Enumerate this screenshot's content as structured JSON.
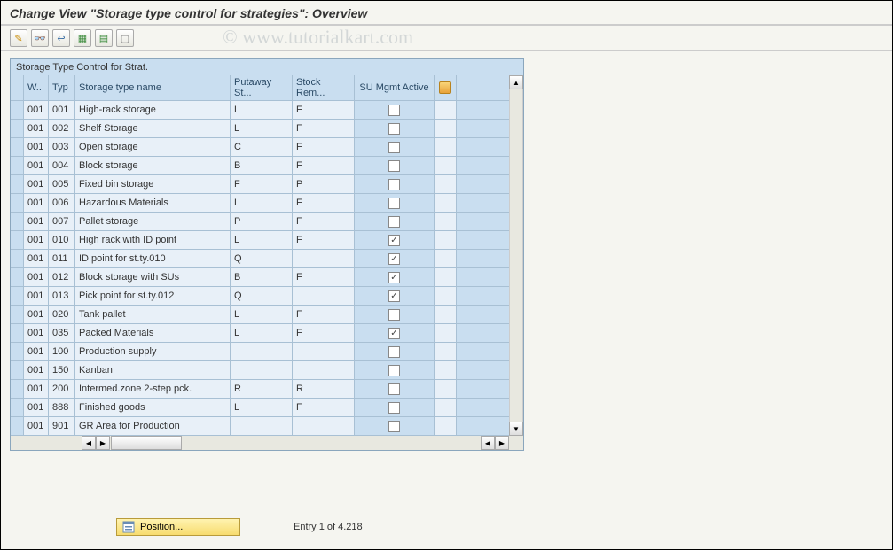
{
  "header": {
    "title": "Change View \"Storage type control for strategies\": Overview"
  },
  "watermark": "© www.tutorialkart.com",
  "toolbar": {
    "buttons": [
      {
        "name": "other-view-icon",
        "glyph": "✎",
        "color": "#c98a00"
      },
      {
        "name": "display-icon",
        "glyph": "👓",
        "color": "#3a6ea5"
      },
      {
        "name": "undo-icon",
        "glyph": "↩",
        "color": "#3a6ea5"
      },
      {
        "name": "select-all-icon",
        "glyph": "▦",
        "color": "#3a8a3a"
      },
      {
        "name": "select-block-icon",
        "glyph": "▤",
        "color": "#3a8a3a"
      },
      {
        "name": "deselect-icon",
        "glyph": "▢",
        "color": "#888"
      }
    ]
  },
  "panel": {
    "title": "Storage Type Control for Strat.",
    "columns": {
      "w": "W..",
      "typ": "Typ",
      "name": "Storage type name",
      "putaway": "Putaway St...",
      "removal": "Stock Rem...",
      "su": "SU Mgmt Active"
    },
    "rows": [
      {
        "w": "001",
        "typ": "001",
        "name": "High-rack storage",
        "put": "L",
        "rem": "F",
        "su": false
      },
      {
        "w": "001",
        "typ": "002",
        "name": "Shelf Storage",
        "put": "L",
        "rem": "F",
        "su": false
      },
      {
        "w": "001",
        "typ": "003",
        "name": "Open storage",
        "put": "C",
        "rem": "F",
        "su": false
      },
      {
        "w": "001",
        "typ": "004",
        "name": "Block storage",
        "put": "B",
        "rem": "F",
        "su": false
      },
      {
        "w": "001",
        "typ": "005",
        "name": "Fixed bin storage",
        "put": "F",
        "rem": "P",
        "su": false
      },
      {
        "w": "001",
        "typ": "006",
        "name": "Hazardous Materials",
        "put": "L",
        "rem": "F",
        "su": false
      },
      {
        "w": "001",
        "typ": "007",
        "name": "Pallet storage",
        "put": "P",
        "rem": "F",
        "su": false
      },
      {
        "w": "001",
        "typ": "010",
        "name": "High rack with ID point",
        "put": "L",
        "rem": "F",
        "su": true
      },
      {
        "w": "001",
        "typ": "011",
        "name": "ID point for st.ty.010",
        "put": "Q",
        "rem": "",
        "su": true
      },
      {
        "w": "001",
        "typ": "012",
        "name": "Block storage with SUs",
        "put": "B",
        "rem": "F",
        "su": true
      },
      {
        "w": "001",
        "typ": "013",
        "name": "Pick point for st.ty.012",
        "put": "Q",
        "rem": "",
        "su": true
      },
      {
        "w": "001",
        "typ": "020",
        "name": "Tank pallet",
        "put": "L",
        "rem": "F",
        "su": false
      },
      {
        "w": "001",
        "typ": "035",
        "name": "Packed Materials",
        "put": "L",
        "rem": "F",
        "su": true
      },
      {
        "w": "001",
        "typ": "100",
        "name": "Production supply",
        "put": "",
        "rem": "",
        "su": false
      },
      {
        "w": "001",
        "typ": "150",
        "name": "Kanban",
        "put": "",
        "rem": "",
        "su": false
      },
      {
        "w": "001",
        "typ": "200",
        "name": "Intermed.zone 2-step pck.",
        "put": "R",
        "rem": "R",
        "su": false
      },
      {
        "w": "001",
        "typ": "888",
        "name": "Finished goods",
        "put": "L",
        "rem": "F",
        "su": false
      },
      {
        "w": "001",
        "typ": "901",
        "name": "GR Area for Production",
        "put": "",
        "rem": "",
        "su": false
      }
    ]
  },
  "footer": {
    "position_label": "Position...",
    "entry_text": "Entry 1 of 4.218"
  },
  "colors": {
    "panel_border": "#8aa6bd",
    "header_bg": "#c9def0",
    "cell_bg": "#e8f0f8",
    "grid_line": "#a8c0d4"
  }
}
